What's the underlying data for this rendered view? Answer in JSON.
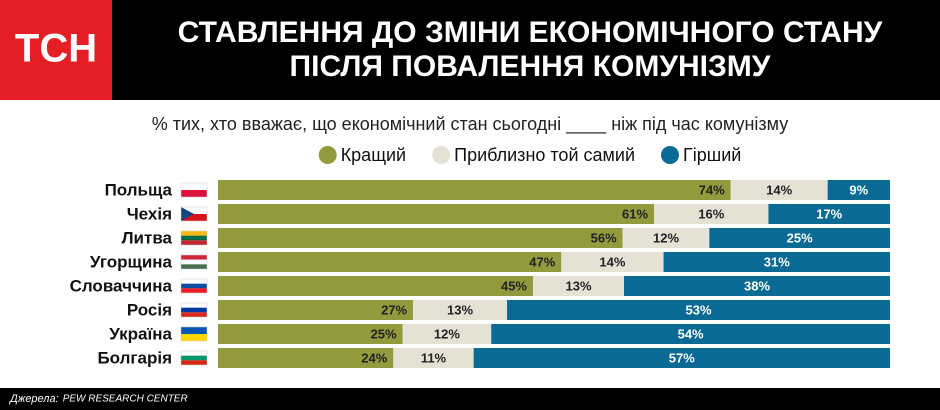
{
  "logo": "ТСН",
  "chart_data": {
    "type": "stacked_bar_h",
    "title": [
      "СТАВЛЕННЯ ДО ЗМІНИ ЕКОНОМІЧНОГО СТАНУ",
      "ПІСЛЯ ПОВАЛЕННЯ КОМУНІЗМУ"
    ],
    "subtitle": "% тих, хто вважає, що економічний стан сьогодні ____ ніж під час комунізму",
    "categories": [
      "Польща",
      "Чехія",
      "Литва",
      "Угорщина",
      "Словаччина",
      "Росія",
      "Україна",
      "Болгарія"
    ],
    "series": [
      {
        "name": "Кращий",
        "color": "#939a3e",
        "values": [
          74,
          61,
          56,
          47,
          45,
          27,
          25,
          24
        ],
        "value_labels": [
          "74%",
          "61%",
          "56%",
          "47%",
          "45%",
          "27%",
          "25%",
          "24%"
        ]
      },
      {
        "name": "Приблизно той самий",
        "color": "#e4e1d5",
        "values": [
          14,
          16,
          12,
          14,
          13,
          13,
          12,
          11
        ],
        "value_labels": [
          "14%",
          "16%",
          "12%",
          "14%",
          "13%",
          "13%",
          "12%",
          "11%"
        ]
      },
      {
        "name": "Гірший",
        "color": "#0b6a94",
        "values": [
          9,
          17,
          25,
          31,
          38,
          53,
          54,
          57
        ],
        "value_labels": [
          "9%",
          "17%",
          "25%",
          "31%",
          "38%",
          "53%",
          "54%",
          "57%"
        ]
      }
    ]
  },
  "source_label": "Джерела:",
  "source": "PEW RESEARCH CENTER"
}
